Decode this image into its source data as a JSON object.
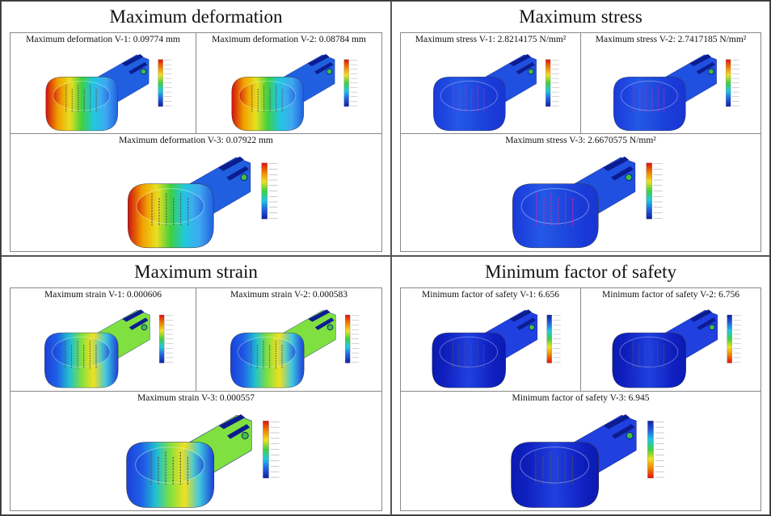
{
  "panels": [
    {
      "title": "Maximum deformation",
      "views": [
        "Maximum deformation V-1: 0.09774 mm",
        "Maximum deformation V-2: 0.08784 mm",
        "Maximum deformation V-3: 0.07922 mm"
      ]
    },
    {
      "title": "Maximum stress",
      "views": [
        "Maximum stress V-1: 2.8214175 N/mm²",
        "Maximum stress V-2: 2.7417185 N/mm²",
        "Maximum stress V-3: 2.6670575 N/mm²"
      ]
    },
    {
      "title": "Maximum strain",
      "views": [
        "Maximum strain V-1: 0.000606",
        "Maximum strain V-2: 0.000583",
        "Maximum strain V-3: 0.000557"
      ]
    },
    {
      "title": "Minimum factor of safety",
      "views": [
        "Minimum factor of safety V-1: 6.656",
        "Minimum factor of safety V-2: 6.756",
        "Minimum factor of safety V-3: 6.945"
      ]
    }
  ]
}
